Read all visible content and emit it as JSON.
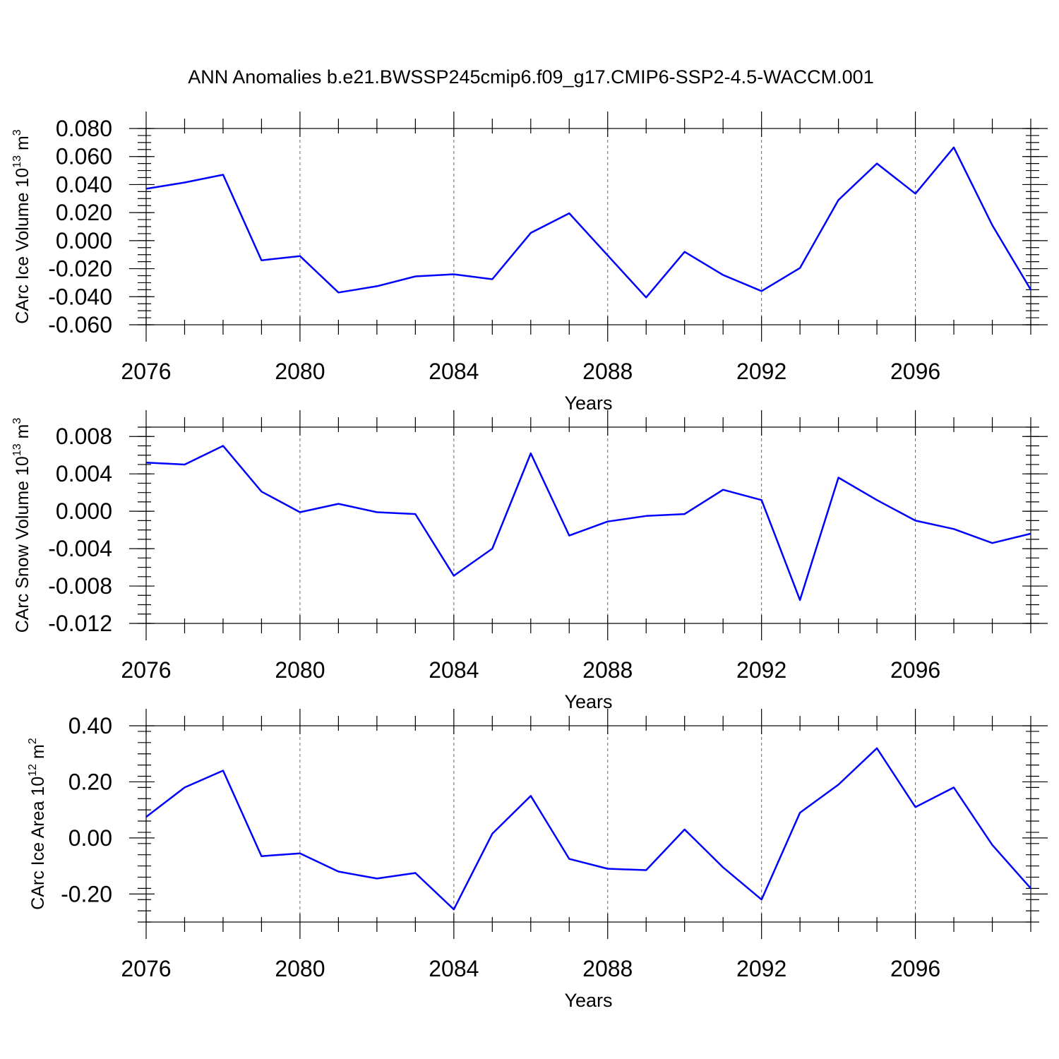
{
  "figure_title": "ANN Anomalies b.e21.BWSSP245cmip6.f09_g17.CMIP6-SSP2-4.5-WACCM.001",
  "chart_data": [
    {
      "type": "line",
      "title": "ANN Anomalies b.e21.BWSSP245cmip6.f09_g17.CMIP6-SSP2-4.5-WACCM.001",
      "xlabel": "Years",
      "ylabel_main": "CArc Ice Volume 10",
      "ylabel_exp": "13",
      "ylabel_unit": " m",
      "ylabel_unit_exp": "3",
      "xlim": [
        2076,
        2099
      ],
      "ylim": [
        -0.06,
        0.08
      ],
      "x_ticks": [
        2076,
        2080,
        2084,
        2088,
        2092,
        2096
      ],
      "x_tick_labels": [
        "2076",
        "2080",
        "2084",
        "2088",
        "2092",
        "2096"
      ],
      "y_ticks": [
        -0.06,
        -0.04,
        -0.02,
        0.0,
        0.02,
        0.04,
        0.06,
        0.08
      ],
      "y_tick_labels": [
        "-0.060",
        "-0.040",
        "-0.020",
        "0.000",
        "0.020",
        "0.040",
        "0.060",
        "0.080"
      ],
      "y_minor_step": 0.005,
      "gridlines_x": [
        2080,
        2084,
        2088,
        2092,
        2096
      ],
      "color": "#0000ff",
      "x": [
        2076,
        2077,
        2078,
        2079,
        2080,
        2081,
        2082,
        2083,
        2084,
        2085,
        2086,
        2087,
        2088,
        2089,
        2090,
        2091,
        2092,
        2093,
        2094,
        2095,
        2096,
        2097,
        2098,
        2099
      ],
      "values": [
        0.037,
        0.0415,
        0.047,
        -0.014,
        -0.011,
        -0.037,
        -0.0325,
        -0.0255,
        -0.024,
        -0.0275,
        0.0055,
        0.0195,
        -0.0105,
        -0.0405,
        -0.008,
        -0.0245,
        -0.036,
        -0.0195,
        0.029,
        0.055,
        0.0335,
        0.0665,
        0.011,
        -0.035
      ]
    },
    {
      "type": "line",
      "title": "",
      "xlabel": "Years",
      "ylabel_main": "CArc Snow Volume 10",
      "ylabel_exp": "13",
      "ylabel_unit": " m",
      "ylabel_unit_exp": "3",
      "xlim": [
        2076,
        2099
      ],
      "ylim": [
        -0.012,
        0.009
      ],
      "x_ticks": [
        2076,
        2080,
        2084,
        2088,
        2092,
        2096
      ],
      "x_tick_labels": [
        "2076",
        "2080",
        "2084",
        "2088",
        "2092",
        "2096"
      ],
      "y_ticks": [
        -0.012,
        -0.008,
        -0.004,
        0.0,
        0.004,
        0.008
      ],
      "y_tick_labels": [
        "-0.012",
        "-0.008",
        "-0.004",
        "0.000",
        "0.004",
        "0.008"
      ],
      "y_minor_step": 0.001,
      "gridlines_x": [
        2080,
        2084,
        2088,
        2092,
        2096
      ],
      "color": "#0000ff",
      "x": [
        2076,
        2077,
        2078,
        2079,
        2080,
        2081,
        2082,
        2083,
        2084,
        2085,
        2086,
        2087,
        2088,
        2089,
        2090,
        2091,
        2092,
        2093,
        2094,
        2095,
        2096,
        2097,
        2098,
        2099
      ],
      "values": [
        0.0052,
        0.005,
        0.007,
        0.0021,
        -0.0001,
        0.0008,
        -0.0001,
        -0.0003,
        -0.0069,
        -0.004,
        0.0062,
        -0.0026,
        -0.0011,
        -0.0005,
        -0.0003,
        0.0023,
        0.0012,
        -0.0095,
        0.0036,
        0.0012,
        -0.001,
        -0.0019,
        -0.0034,
        -0.0024
      ]
    },
    {
      "type": "line",
      "title": "",
      "xlabel": "Years",
      "ylabel_main": "CArc Ice Area 10",
      "ylabel_exp": "12",
      "ylabel_unit": " m",
      "ylabel_unit_exp": "2",
      "xlim": [
        2076,
        2099
      ],
      "ylim": [
        -0.3,
        0.4
      ],
      "x_ticks": [
        2076,
        2080,
        2084,
        2088,
        2092,
        2096
      ],
      "x_tick_labels": [
        "2076",
        "2080",
        "2084",
        "2088",
        "2092",
        "2096"
      ],
      "y_ticks": [
        -0.2,
        0.0,
        0.2,
        0.4
      ],
      "y_tick_labels": [
        "-0.20",
        "0.00",
        "0.20",
        "0.40"
      ],
      "y_minor_step": 0.04,
      "gridlines_x": [
        2080,
        2084,
        2088,
        2092,
        2096
      ],
      "color": "#0000ff",
      "x": [
        2076,
        2077,
        2078,
        2079,
        2080,
        2081,
        2082,
        2083,
        2084,
        2085,
        2086,
        2087,
        2088,
        2089,
        2090,
        2091,
        2092,
        2093,
        2094,
        2095,
        2096,
        2097,
        2098,
        2099
      ],
      "values": [
        0.075,
        0.18,
        0.24,
        -0.065,
        -0.055,
        -0.12,
        -0.145,
        -0.125,
        -0.255,
        0.015,
        0.15,
        -0.075,
        -0.11,
        -0.115,
        0.03,
        -0.105,
        -0.22,
        0.09,
        0.19,
        0.32,
        0.11,
        0.18,
        -0.025,
        -0.18
      ]
    }
  ]
}
